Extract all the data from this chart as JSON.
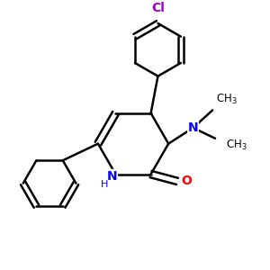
{
  "background_color": "#ffffff",
  "atom_colors": {
    "N": "#0000ff",
    "O": "#ff0000",
    "Cl": "#9900cc",
    "C": "#000000",
    "H": "#000000"
  },
  "bond_color": "#000000",
  "bond_width": 1.8,
  "figsize": [
    3.0,
    3.0
  ],
  "dpi": 100,
  "xlim": [
    0.0,
    3.0
  ],
  "ylim": [
    0.0,
    3.0
  ]
}
